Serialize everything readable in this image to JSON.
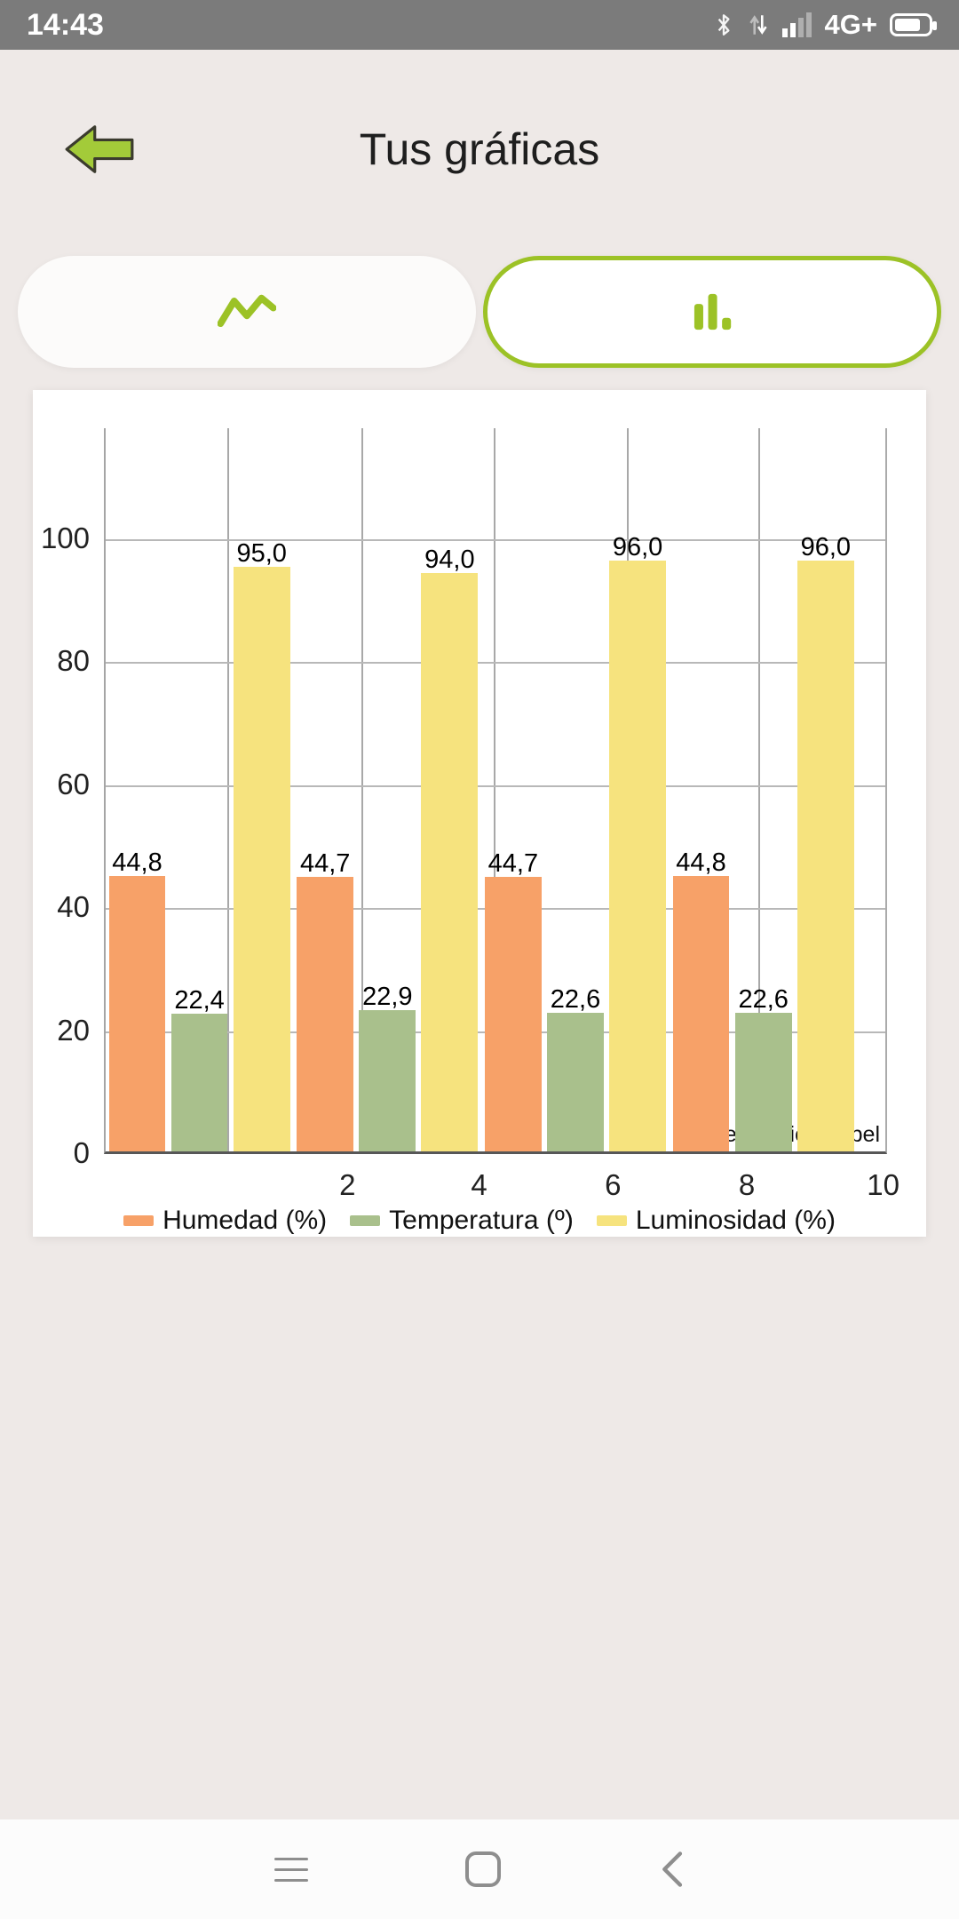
{
  "status_bar": {
    "time": "14:43",
    "network_type": "4G+"
  },
  "header": {
    "title": "Tus gráficas"
  },
  "tabs": {
    "line_tab_icon": "line-chart-icon",
    "bar_tab_icon": "bar-chart-icon",
    "selected": "bar"
  },
  "chart_data": {
    "type": "bar",
    "title": "",
    "x_tick_labels": [
      "2",
      "4",
      "6",
      "8",
      "10"
    ],
    "y_ticks": [
      0,
      20,
      40,
      60,
      80,
      100
    ],
    "ylim": [
      0,
      118
    ],
    "grid": true,
    "legend_position": "bottom",
    "description_label": "Description Label",
    "series": [
      {
        "name": "Humedad (%)",
        "color": "#F7A168",
        "values": [
          44.8,
          44.7,
          44.7,
          44.8
        ],
        "value_labels": [
          "44,8",
          "44,7",
          "44,7",
          "44,8"
        ]
      },
      {
        "name": "Temperatura (º)",
        "color": "#A9C08C",
        "values": [
          22.4,
          22.9,
          22.6,
          22.6
        ],
        "value_labels": [
          "22,4",
          "22,9",
          "22,6",
          "22,6"
        ]
      },
      {
        "name": "Luminosidad (%)",
        "color": "#F6E37E",
        "values": [
          95.0,
          94.0,
          96.0,
          96.0
        ],
        "value_labels": [
          "95,0",
          "94,0",
          "96,0",
          "96,0"
        ]
      }
    ]
  },
  "colors": {
    "accent_green": "#9CC226",
    "background": "#EEE9E7",
    "status_bar_gray": "#7B7B7B"
  },
  "nav_bar": {
    "buttons": [
      "menu",
      "home",
      "back"
    ]
  }
}
